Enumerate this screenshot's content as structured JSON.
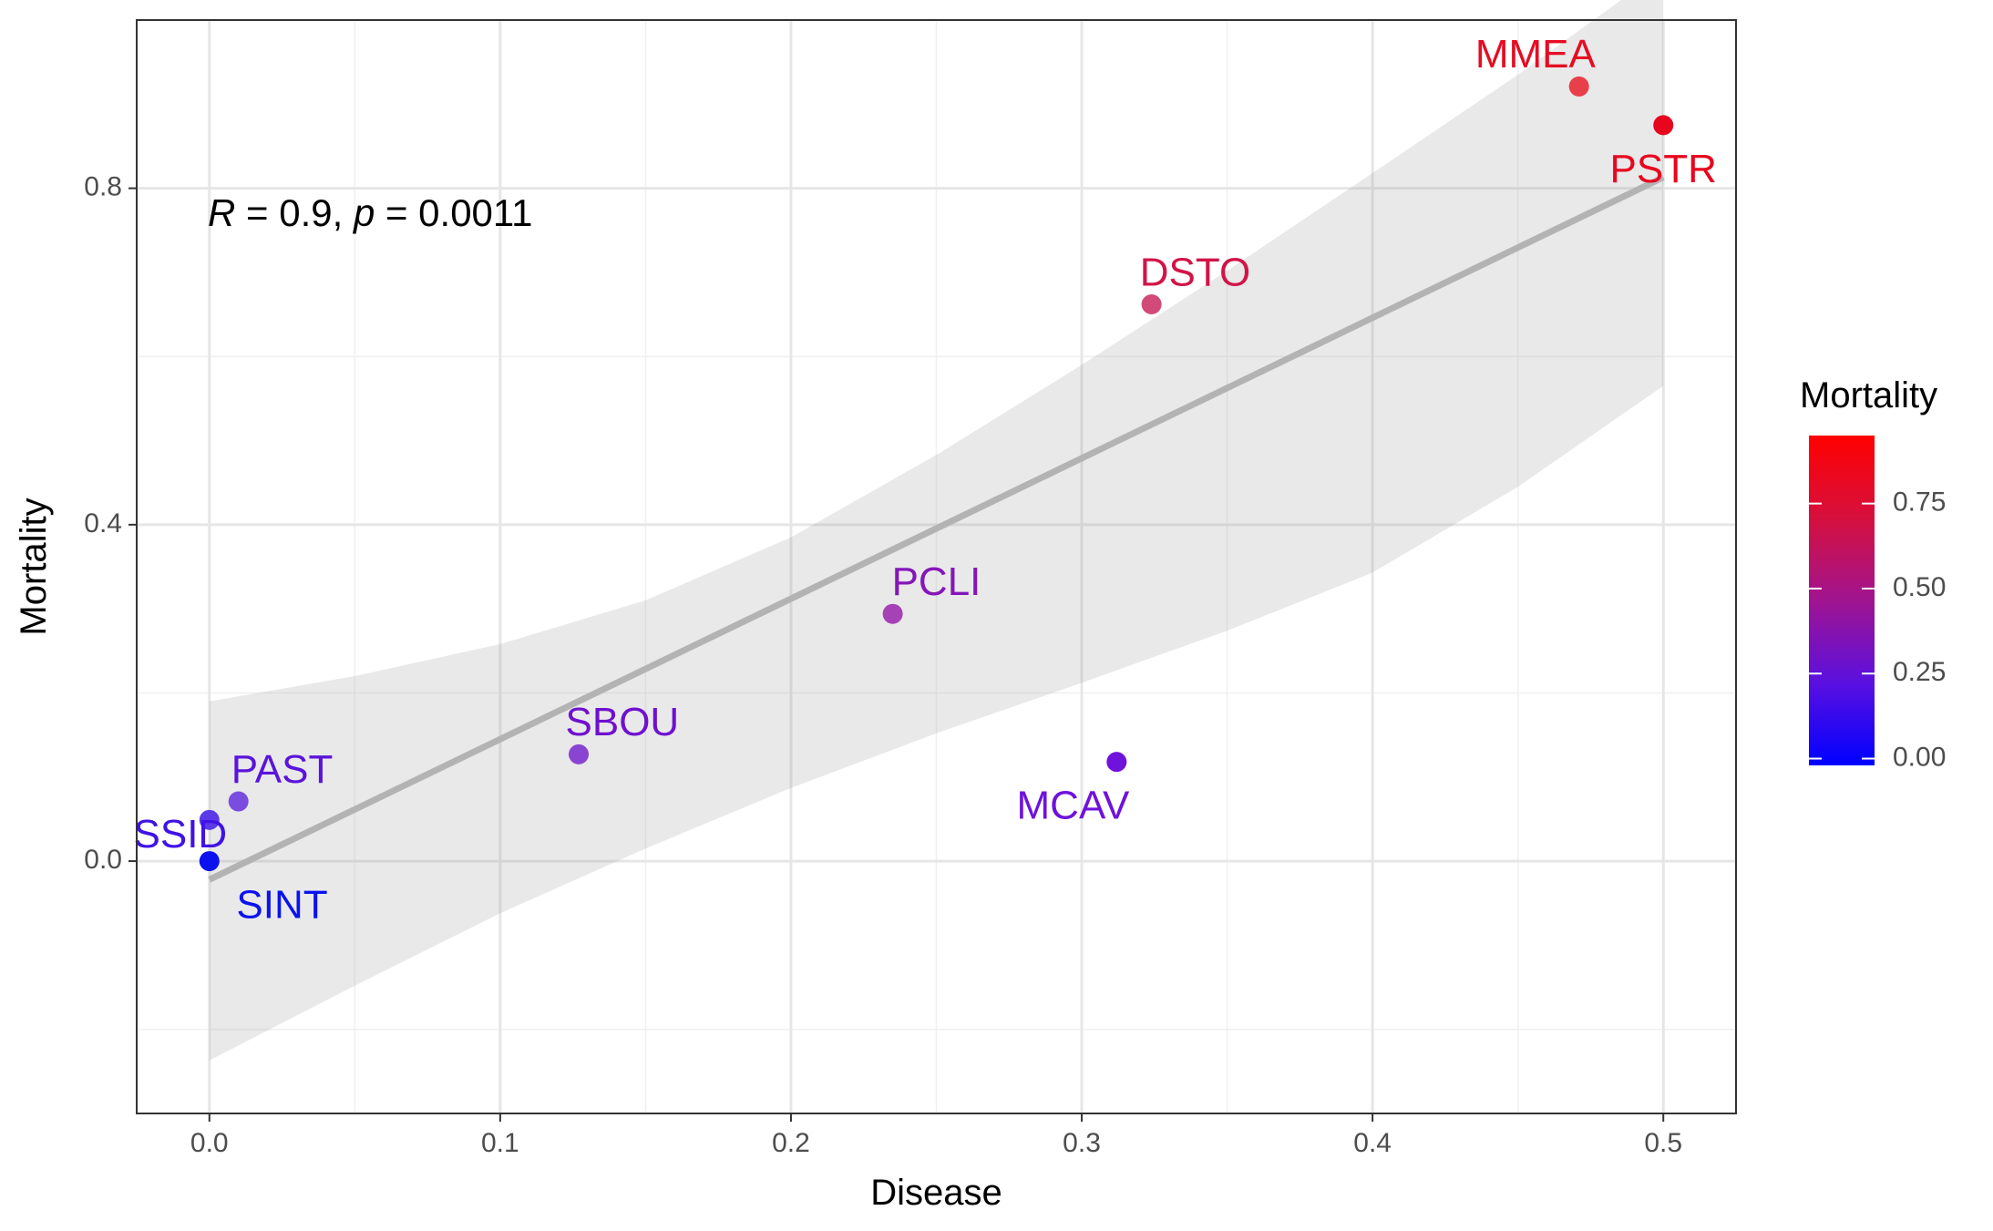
{
  "chart_data": {
    "type": "scatter",
    "xlabel": "Disease",
    "ylabel": "Mortality",
    "xlim": [
      -0.025,
      0.525
    ],
    "ylim": [
      -0.3,
      1.0
    ],
    "x_ticks": [
      {
        "value": 0.0,
        "label": "0.0"
      },
      {
        "value": 0.1,
        "label": "0.1"
      },
      {
        "value": 0.2,
        "label": "0.2"
      },
      {
        "value": 0.3,
        "label": "0.3"
      },
      {
        "value": 0.4,
        "label": "0.4"
      },
      {
        "value": 0.5,
        "label": "0.5"
      }
    ],
    "y_ticks": [
      {
        "value": 0.0,
        "label": "0.0"
      },
      {
        "value": 0.4,
        "label": "0.4"
      },
      {
        "value": 0.8,
        "label": "0.8"
      }
    ],
    "grid": true,
    "annotation": {
      "r_symbol": "R",
      "r_text": " = 0.9, ",
      "p_symbol": "p",
      "p_text": " = 0.0011"
    },
    "points": [
      {
        "label": "MMEA",
        "x": 0.471,
        "y": 0.921,
        "color": "#e8404a",
        "label_color": "#e60c22",
        "label_dx": -0.015,
        "label_dy": 0.035
      },
      {
        "label": "PSTR",
        "x": 0.5,
        "y": 0.875,
        "color": "#e8061e",
        "label_color": "#e8061e",
        "label_dx": 0.0,
        "label_dy": -0.055
      },
      {
        "label": "DSTO",
        "x": 0.324,
        "y": 0.662,
        "color": "#d24b78",
        "label_color": "#d21448",
        "label_dx": 0.015,
        "label_dy": 0.035
      },
      {
        "label": "PCLI",
        "x": 0.235,
        "y": 0.294,
        "color": "#a542b5",
        "label_color": "#8416b8",
        "label_dx": 0.015,
        "label_dy": 0.035
      },
      {
        "label": "SBOU",
        "x": 0.127,
        "y": 0.127,
        "color": "#8a44d2",
        "label_color": "#6f10cf",
        "label_dx": 0.015,
        "label_dy": 0.035
      },
      {
        "label": "MCAV",
        "x": 0.312,
        "y": 0.118,
        "color": "#6f12dc",
        "label_color": "#6f12dc",
        "label_dx": -0.015,
        "label_dy": -0.055
      },
      {
        "label": "PAST",
        "x": 0.01,
        "y": 0.071,
        "color": "#7a4ce0",
        "label_color": "#5a14db",
        "label_dx": 0.015,
        "label_dy": 0.035
      },
      {
        "label": "SSID",
        "x": 0.0,
        "y": 0.049,
        "color": "#5b3ae8",
        "label_color": "#4012e6",
        "label_dx": -0.01,
        "label_dy": -0.02
      },
      {
        "label": "SINT",
        "x": 0.0,
        "y": 0.0,
        "color": "#0a12f0",
        "label_color": "#0a12f0",
        "label_dx": 0.025,
        "label_dy": -0.055
      }
    ],
    "regression": {
      "x": [
        0.0,
        0.5
      ],
      "y": [
        -0.022,
        0.813
      ]
    },
    "confidence_band": {
      "x": [
        0.0,
        0.05,
        0.1,
        0.15,
        0.2,
        0.25,
        0.3,
        0.35,
        0.4,
        0.45,
        0.5
      ],
      "upper": [
        0.19,
        0.22,
        0.258,
        0.31,
        0.385,
        0.483,
        0.59,
        0.702,
        0.818,
        0.935,
        1.06
      ],
      "lower": [
        -0.237,
        -0.148,
        -0.062,
        0.015,
        0.087,
        0.152,
        0.212,
        0.274,
        0.343,
        0.445,
        0.565
      ]
    },
    "legend": {
      "title": "Mortality",
      "placement": "right",
      "range": [
        -0.02,
        0.95
      ],
      "ticks": [
        {
          "value": 0.0,
          "label": "0.00"
        },
        {
          "value": 0.25,
          "label": "0.25"
        },
        {
          "value": 0.5,
          "label": "0.50"
        },
        {
          "value": 0.75,
          "label": "0.75"
        }
      ],
      "colors": [
        "#0000ff",
        "#5a10e0",
        "#a01490",
        "#d6103e",
        "#ff0000"
      ]
    }
  }
}
